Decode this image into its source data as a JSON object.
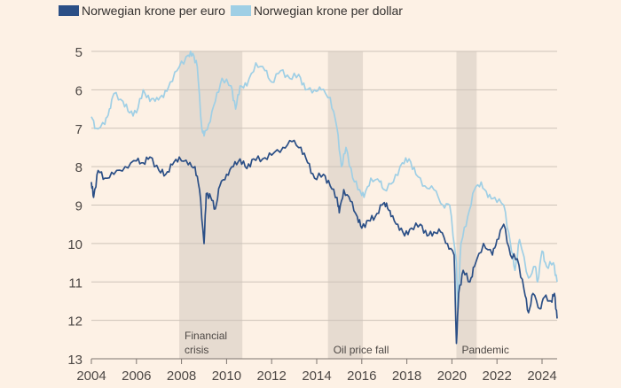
{
  "chart_data": {
    "type": "line",
    "title": "",
    "xlabel": "",
    "ylabel": "",
    "xlim": [
      2004,
      2024.67
    ],
    "ylim": [
      5,
      13
    ],
    "y_inverted": true,
    "grid": "horizontal",
    "legend_placement": "top-left",
    "x_ticks": [
      "2004",
      "2006",
      "2008",
      "2010",
      "2012",
      "2014",
      "2016",
      "2018",
      "2020",
      "2022",
      "2024"
    ],
    "y_ticks": [
      "5",
      "6",
      "7",
      "8",
      "9",
      "10",
      "11",
      "12",
      "13"
    ],
    "colors": {
      "background": "#fdf1e5",
      "euro": "#2b4f86",
      "dollar": "#9fcfe5",
      "shade": "#e6dbd0",
      "grid": "#cdc3b9"
    },
    "shaded_periods": [
      {
        "label": "Financial\ncrisis",
        "start": 2007.9,
        "end": 2010.7
      },
      {
        "label": "Oil price fall",
        "start": 2014.5,
        "end": 2016.05
      },
      {
        "label": "Pandemic",
        "start": 2020.2,
        "end": 2021.1
      }
    ],
    "series": [
      {
        "name": "Norwegian krone per euro",
        "color": "#2b4f86",
        "x": [
          2004.0,
          2004.1,
          2004.3,
          2004.6,
          2005.0,
          2005.5,
          2006.0,
          2006.3,
          2006.6,
          2007.0,
          2007.3,
          2007.6,
          2007.9,
          2008.3,
          2008.6,
          2008.8,
          2009.0,
          2009.1,
          2009.3,
          2009.5,
          2009.7,
          2010.0,
          2010.3,
          2010.6,
          2010.9,
          2011.2,
          2011.6,
          2012.0,
          2012.5,
          2012.9,
          2013.3,
          2013.6,
          2013.9,
          2014.3,
          2014.6,
          2014.9,
          2015.0,
          2015.2,
          2015.5,
          2015.8,
          2016.0,
          2016.3,
          2016.6,
          2016.9,
          2017.1,
          2017.3,
          2017.6,
          2017.9,
          2018.2,
          2018.6,
          2018.9,
          2019.2,
          2019.5,
          2019.8,
          2020.1,
          2020.2,
          2020.3,
          2020.5,
          2020.8,
          2021.0,
          2021.4,
          2021.8,
          2022.0,
          2022.3,
          2022.6,
          2022.9,
          2023.2,
          2023.4,
          2023.6,
          2023.9,
          2024.1,
          2024.4,
          2024.55,
          2024.67
        ],
        "y": [
          8.4,
          8.8,
          8.1,
          8.3,
          8.2,
          8.0,
          7.85,
          7.9,
          7.75,
          8.1,
          8.2,
          7.95,
          7.75,
          7.95,
          8.0,
          8.6,
          10.0,
          8.7,
          8.8,
          9.1,
          8.5,
          8.2,
          8.0,
          7.8,
          8.05,
          7.8,
          7.8,
          7.7,
          7.5,
          7.35,
          7.5,
          7.9,
          8.3,
          8.2,
          8.5,
          8.8,
          9.2,
          8.6,
          8.9,
          9.3,
          9.6,
          9.4,
          9.3,
          9.0,
          8.95,
          9.3,
          9.5,
          9.8,
          9.6,
          9.5,
          9.8,
          9.7,
          9.7,
          10.0,
          10.3,
          12.6,
          11.3,
          10.7,
          11.0,
          10.6,
          10.0,
          10.3,
          9.9,
          9.5,
          10.3,
          10.4,
          11.2,
          11.8,
          11.3,
          11.7,
          11.4,
          11.5,
          11.3,
          11.95
        ]
      },
      {
        "name": "Norwegian krone per dollar",
        "color": "#9fcfe5",
        "x": [
          2004.0,
          2004.2,
          2004.6,
          2004.8,
          2005.0,
          2005.4,
          2005.7,
          2006.0,
          2006.3,
          2006.6,
          2006.9,
          2007.2,
          2007.5,
          2007.9,
          2008.3,
          2008.5,
          2008.7,
          2008.9,
          2009.0,
          2009.2,
          2009.5,
          2009.8,
          2010.2,
          2010.4,
          2010.6,
          2010.9,
          2011.3,
          2011.7,
          2012.0,
          2012.4,
          2012.8,
          2013.2,
          2013.5,
          2013.9,
          2014.2,
          2014.6,
          2014.9,
          2015.1,
          2015.3,
          2015.6,
          2015.9,
          2016.1,
          2016.4,
          2016.8,
          2017.0,
          2017.4,
          2017.8,
          2018.1,
          2018.4,
          2018.8,
          2019.2,
          2019.6,
          2019.9,
          2020.2,
          2020.25,
          2020.4,
          2020.7,
          2021.0,
          2021.3,
          2021.6,
          2021.9,
          2022.3,
          2022.6,
          2022.8,
          2023.0,
          2023.4,
          2023.7,
          2023.8,
          2024.0,
          2024.2,
          2024.5,
          2024.67
        ],
        "y": [
          6.7,
          7.0,
          6.9,
          6.5,
          6.1,
          6.3,
          6.6,
          6.6,
          6.0,
          6.3,
          6.2,
          6.2,
          5.8,
          5.4,
          5.1,
          5.05,
          5.4,
          7.0,
          7.2,
          6.9,
          6.3,
          5.7,
          5.9,
          6.5,
          5.9,
          5.9,
          5.3,
          5.5,
          5.8,
          5.5,
          5.7,
          5.6,
          6.0,
          6.0,
          6.0,
          6.2,
          7.0,
          8.0,
          7.5,
          8.3,
          8.6,
          8.8,
          8.3,
          8.4,
          8.6,
          8.4,
          7.9,
          7.8,
          8.2,
          8.5,
          8.6,
          9.0,
          9.0,
          10.5,
          11.7,
          10.0,
          9.3,
          8.6,
          8.4,
          8.8,
          8.8,
          9.0,
          10.0,
          10.7,
          9.9,
          10.9,
          10.6,
          11.0,
          10.2,
          10.6,
          10.5,
          11.0
        ]
      }
    ]
  }
}
